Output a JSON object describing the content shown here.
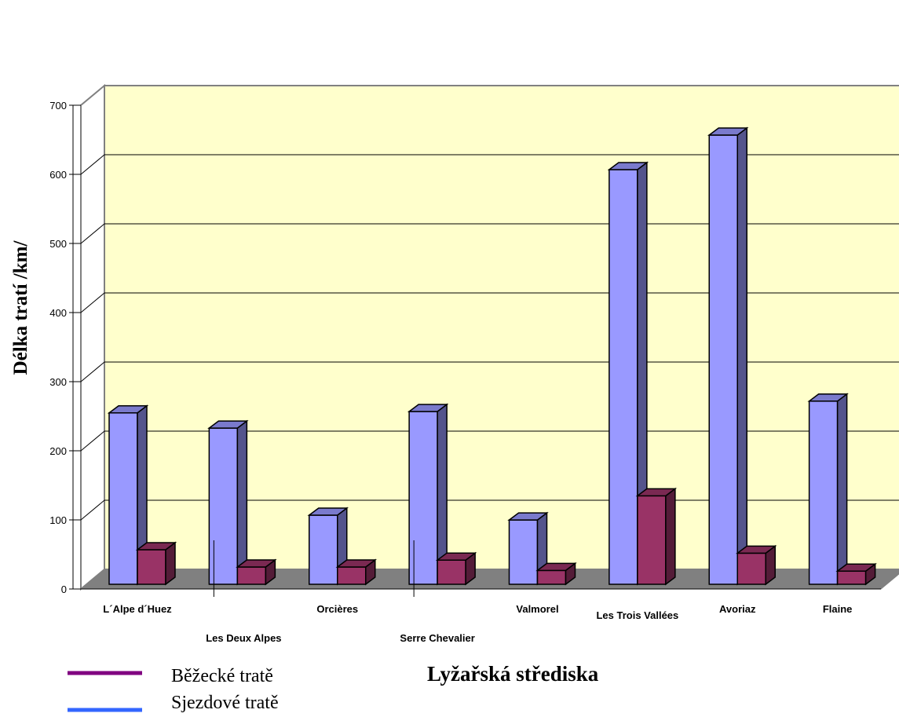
{
  "chart_data": {
    "type": "bar",
    "categories": [
      "L´Alpe d´Huez",
      "Les Deux Alpes",
      "Orcières",
      "Serre Chevalier",
      "Valmorel",
      "Les Trois Vallées",
      "Avoriaz",
      "Flaine"
    ],
    "series": [
      {
        "name": "Sjezdové tratě",
        "values": [
          248,
          226,
          100,
          250,
          93,
          600,
          650,
          265
        ],
        "color": "#9999ff"
      },
      {
        "name": "Běžecké tratě",
        "values": [
          50,
          25,
          25,
          35,
          20,
          128,
          45,
          19
        ],
        "color": "#993366"
      }
    ],
    "legend_colors": {
      "Běžecké tratě": "#800080",
      "Sjezdové tratě": "#3366ff"
    },
    "xlabel": "Lyžařská střediska",
    "ylabel": "Délka tratí /km/",
    "ylim": [
      0,
      700
    ],
    "yticks": [
      0,
      100,
      200,
      300,
      400,
      500,
      600,
      700
    ],
    "grid": true,
    "wall_color": "#ffffcc",
    "floor_color": "#808080",
    "legend_position": "bottom-left"
  }
}
